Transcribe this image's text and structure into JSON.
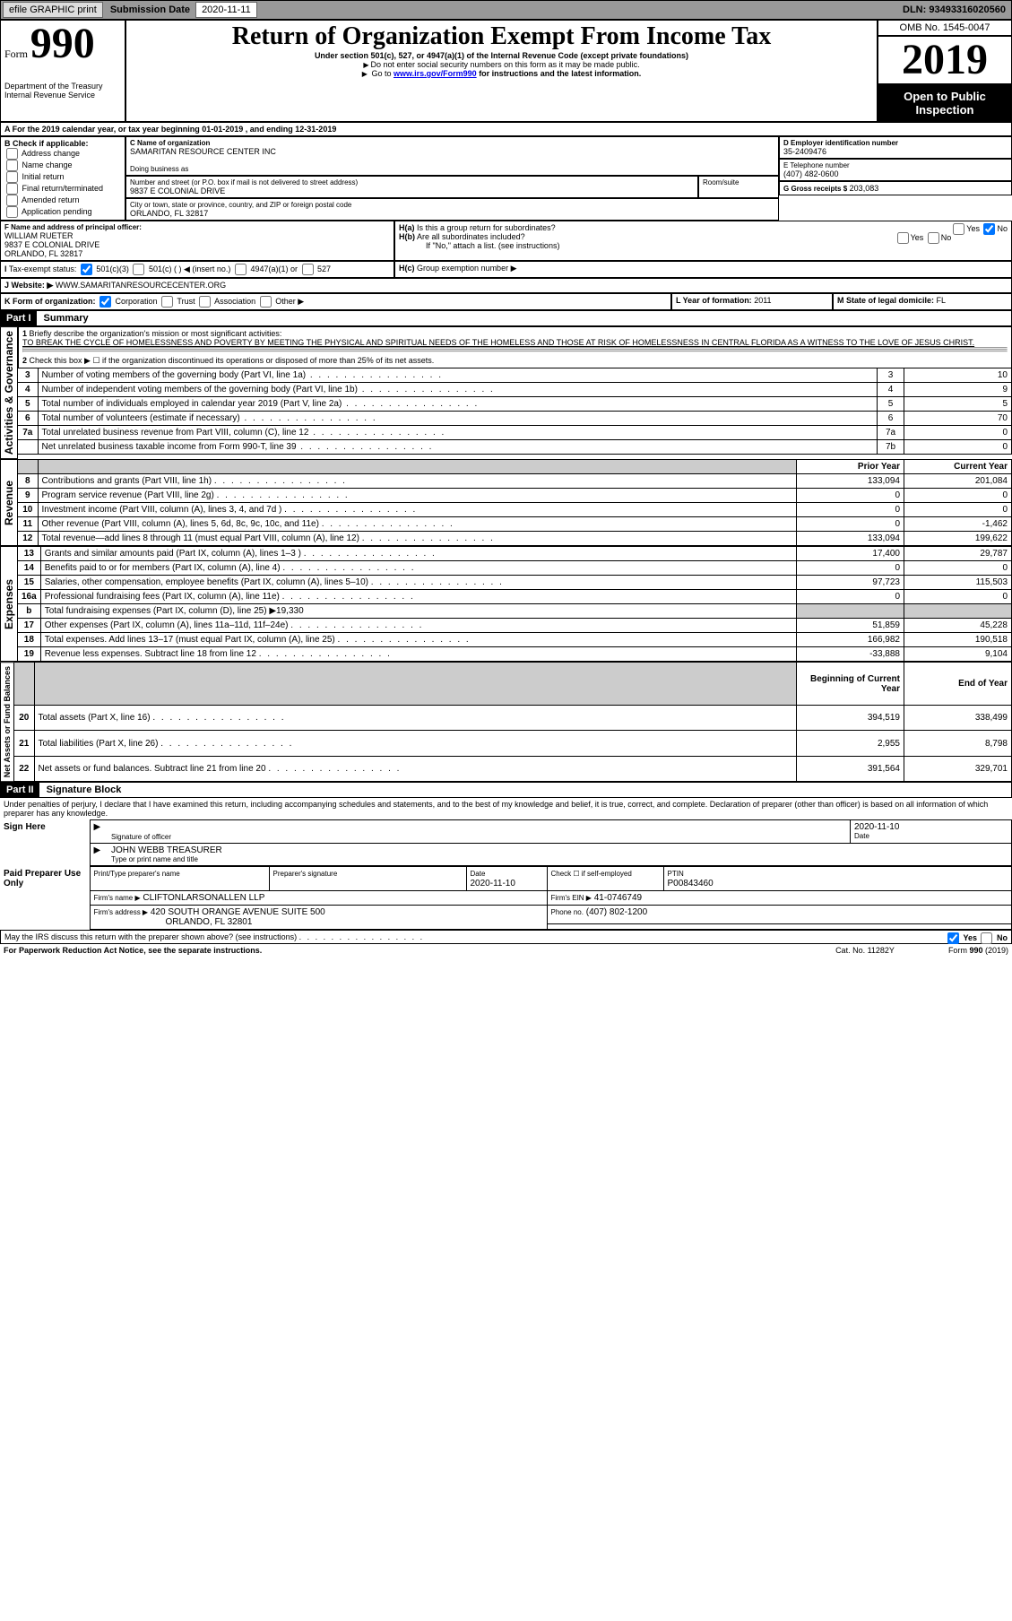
{
  "topbar": {
    "efile": "efile GRAPHIC print",
    "sub_lbl": "Submission Date",
    "sub_val": "2020-11-11",
    "dln_lbl": "DLN:",
    "dln_val": "93493316020560"
  },
  "header": {
    "form_word": "Form",
    "form_num": "990",
    "dept": "Department of the Treasury\nInternal Revenue Service",
    "title": "Return of Organization Exempt From Income Tax",
    "sub1": "Under section 501(c), 527, or 4947(a)(1) of the Internal Revenue Code (except private foundations)",
    "sub2": "Do not enter social security numbers on this form as it may be made public.",
    "sub3_pre": "Go to ",
    "sub3_link": "www.irs.gov/Form990",
    "sub3_post": " for instructions and the latest information.",
    "omb": "OMB No. 1545-0047",
    "year": "2019",
    "public": "Open to Public Inspection"
  },
  "line_a": "For the 2019 calendar year, or tax year beginning 01-01-2019    , and ending 12-31-2019",
  "box_b": {
    "title": "B Check if applicable:",
    "items": [
      "Address change",
      "Name change",
      "Initial return",
      "Final return/terminated",
      "Amended return",
      "Application pending"
    ]
  },
  "box_c": {
    "lbl_name": "C Name of organization",
    "name": "SAMARITAN RESOURCE CENTER INC",
    "dba_lbl": "Doing business as",
    "addr_lbl": "Number and street (or P.O. box if mail is not delivered to street address)",
    "room_lbl": "Room/suite",
    "addr": "9837 E COLONIAL DRIVE",
    "city_lbl": "City or town, state or province, country, and ZIP or foreign postal code",
    "city": "ORLANDO, FL  32817"
  },
  "box_d": {
    "lbl": "D Employer identification number",
    "val": "35-2409476"
  },
  "box_e": {
    "lbl": "E Telephone number",
    "val": "(407) 482-0600"
  },
  "box_g": {
    "lbl": "G Gross receipts $",
    "val": "203,083"
  },
  "box_f": {
    "lbl": "F Name and address of principal officer:",
    "name": "WILLIAM RUETER",
    "addr1": "9837 E COLONIAL DRIVE",
    "addr2": "ORLANDO, FL  32817"
  },
  "box_h": {
    "a": "Is this a group return for subordinates?",
    "b": "Are all subordinates included?",
    "b_note": "If \"No,\" attach a list. (see instructions)",
    "c": "Group exemption number ▶",
    "yes": "Yes",
    "no": "No"
  },
  "box_i": {
    "lbl": "Tax-exempt status:",
    "o1": "501(c)(3)",
    "o2": "501(c) (   ) ◀ (insert no.)",
    "o3": "4947(a)(1) or",
    "o4": "527"
  },
  "box_j": {
    "lbl": "Website: ▶",
    "val": "WWW.SAMARITANRESOURCECENTER.ORG"
  },
  "box_k": {
    "lbl": "K Form of organization:",
    "o1": "Corporation",
    "o2": "Trust",
    "o3": "Association",
    "o4": "Other ▶"
  },
  "box_l": {
    "lbl": "L Year of formation:",
    "val": "2011"
  },
  "box_m": {
    "lbl": "M State of legal domicile:",
    "val": "FL"
  },
  "part1": {
    "hdr": "Part I",
    "title": "Summary",
    "tab_activities": "Activities & Governance",
    "tab_revenue": "Revenue",
    "tab_expenses": "Expenses",
    "tab_net": "Net Assets or Fund Balances",
    "q1_lbl": "Briefly describe the organization's mission or most significant activities:",
    "q1": "TO BREAK THE CYCLE OF HOMELESSNESS AND POVERTY BY MEETING THE PHYSICAL AND SPIRITUAL NEEDS OF THE HOMELESS AND THOSE AT RISK OF HOMELESSNESS IN CENTRAL FLORIDA AS A WITNESS TO THE LOVE OF JESUS CHRIST.",
    "q2": "Check this box ▶ ☐  if the organization discontinued its operations or disposed of more than 25% of its net assets.",
    "rows_ag": [
      {
        "n": "3",
        "d": "Number of voting members of the governing body (Part VI, line 1a)",
        "b": "3",
        "v": "10"
      },
      {
        "n": "4",
        "d": "Number of independent voting members of the governing body (Part VI, line 1b)",
        "b": "4",
        "v": "9"
      },
      {
        "n": "5",
        "d": "Total number of individuals employed in calendar year 2019 (Part V, line 2a)",
        "b": "5",
        "v": "5"
      },
      {
        "n": "6",
        "d": "Total number of volunteers (estimate if necessary)",
        "b": "6",
        "v": "70"
      },
      {
        "n": "7a",
        "d": "Total unrelated business revenue from Part VIII, column (C), line 12",
        "b": "7a",
        "v": "0"
      },
      {
        "n": "",
        "d": "Net unrelated business taxable income from Form 990-T, line 39",
        "b": "7b",
        "v": "0"
      }
    ],
    "col_prior": "Prior Year",
    "col_curr": "Current Year",
    "rows_rev": [
      {
        "n": "8",
        "d": "Contributions and grants (Part VIII, line 1h)",
        "p": "133,094",
        "c": "201,084"
      },
      {
        "n": "9",
        "d": "Program service revenue (Part VIII, line 2g)",
        "p": "0",
        "c": "0"
      },
      {
        "n": "10",
        "d": "Investment income (Part VIII, column (A), lines 3, 4, and 7d )",
        "p": "0",
        "c": "0"
      },
      {
        "n": "11",
        "d": "Other revenue (Part VIII, column (A), lines 5, 6d, 8c, 9c, 10c, and 11e)",
        "p": "0",
        "c": "-1,462"
      },
      {
        "n": "12",
        "d": "Total revenue—add lines 8 through 11 (must equal Part VIII, column (A), line 12)",
        "p": "133,094",
        "c": "199,622"
      }
    ],
    "rows_exp": [
      {
        "n": "13",
        "d": "Grants and similar amounts paid (Part IX, column (A), lines 1–3 )",
        "p": "17,400",
        "c": "29,787"
      },
      {
        "n": "14",
        "d": "Benefits paid to or for members (Part IX, column (A), line 4)",
        "p": "0",
        "c": "0"
      },
      {
        "n": "15",
        "d": "Salaries, other compensation, employee benefits (Part IX, column (A), lines 5–10)",
        "p": "97,723",
        "c": "115,503"
      },
      {
        "n": "16a",
        "d": "Professional fundraising fees (Part IX, column (A), line 11e)",
        "p": "0",
        "c": "0"
      },
      {
        "n": "b",
        "d": "Total fundraising expenses (Part IX, column (D), line 25) ▶19,330",
        "p": "",
        "c": "",
        "shade": true
      },
      {
        "n": "17",
        "d": "Other expenses (Part IX, column (A), lines 11a–11d, 11f–24e)",
        "p": "51,859",
        "c": "45,228"
      },
      {
        "n": "18",
        "d": "Total expenses. Add lines 13–17 (must equal Part IX, column (A), line 25)",
        "p": "166,982",
        "c": "190,518"
      },
      {
        "n": "19",
        "d": "Revenue less expenses. Subtract line 18 from line 12",
        "p": "-33,888",
        "c": "9,104"
      }
    ],
    "col_begin": "Beginning of Current Year",
    "col_end": "End of Year",
    "rows_net": [
      {
        "n": "20",
        "d": "Total assets (Part X, line 16)",
        "p": "394,519",
        "c": "338,499"
      },
      {
        "n": "21",
        "d": "Total liabilities (Part X, line 26)",
        "p": "2,955",
        "c": "8,798"
      },
      {
        "n": "22",
        "d": "Net assets or fund balances. Subtract line 21 from line 20",
        "p": "391,564",
        "c": "329,701"
      }
    ]
  },
  "part2": {
    "hdr": "Part II",
    "title": "Signature Block",
    "decl": "Under penalties of perjury, I declare that I have examined this return, including accompanying schedules and statements, and to the best of my knowledge and belief, it is true, correct, and complete. Declaration of preparer (other than officer) is based on all information of which preparer has any knowledge.",
    "sign_here": "Sign Here",
    "sig_officer_lbl": "Signature of officer",
    "sig_date": "2020-11-10",
    "date_lbl": "Date",
    "officer_name": "JOHN WEBB TREASURER",
    "officer_lbl": "Type or print name and title",
    "paid": "Paid Preparer Use Only",
    "prep_name_lbl": "Print/Type preparer's name",
    "prep_sig_lbl": "Preparer's signature",
    "prep_date_lbl": "Date",
    "prep_date": "2020-11-10",
    "check_self": "Check ☐ if self-employed",
    "ptin_lbl": "PTIN",
    "ptin": "P00843460",
    "firm_name_lbl": "Firm's name    ▶",
    "firm_name": "CLIFTONLARSONALLEN LLP",
    "firm_ein_lbl": "Firm's EIN ▶",
    "firm_ein": "41-0746749",
    "firm_addr_lbl": "Firm's address ▶",
    "firm_addr1": "420 SOUTH ORANGE AVENUE SUITE 500",
    "firm_addr2": "ORLANDO, FL  32801",
    "phone_lbl": "Phone no.",
    "phone": "(407) 802-1200",
    "discuss": "May the IRS discuss this return with the preparer shown above? (see instructions)",
    "yes": "Yes",
    "no": "No"
  },
  "footer": {
    "left": "For Paperwork Reduction Act Notice, see the separate instructions.",
    "mid": "Cat. No. 11282Y",
    "right": "Form 990 (2019)"
  }
}
